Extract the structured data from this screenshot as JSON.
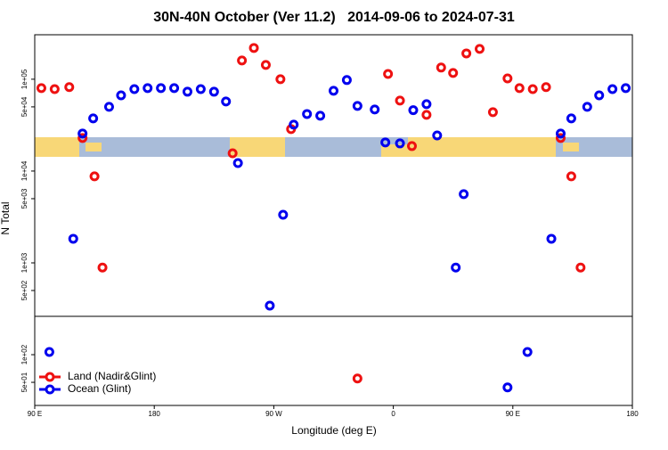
{
  "chart_data": {
    "type": "scatter",
    "title": "30N-40N October (Ver 11.2)   2014-09-06 to 2024-07-31",
    "xlabel": "Longitude (deg E)",
    "ylabel": "N Total",
    "xlim": [
      90,
      540
    ],
    "xticks": [
      {
        "value": 90,
        "label": "90 E"
      },
      180,
      {
        "value": 270,
        "label": "90 W"
      },
      {
        "value": 360,
        "label": "0"
      },
      {
        "value": 450,
        "label": "90 E"
      },
      {
        "value": 540,
        "label": "180"
      }
    ],
    "ylim": [
      28,
      305000
    ],
    "log_y": true,
    "yticks": [
      {
        "value": 50,
        "label": "5e+01"
      },
      {
        "value": 100,
        "label": "1e+02"
      },
      {
        "value": 500,
        "label": "5e+02"
      },
      {
        "value": 1000,
        "label": "1e+03"
      },
      {
        "value": 5000,
        "label": "5e+03"
      },
      {
        "value": 10000,
        "label": "1e+04"
      },
      {
        "value": 50000,
        "label": "5e+04"
      },
      {
        "value": 100000,
        "label": "1e+05"
      }
    ],
    "legend": "bottom-left",
    "series": [
      {
        "name": "Land (Nadir&Glint)",
        "color": "#ee1111",
        "x": [
          95,
          105,
          116,
          126,
          135,
          141,
          239,
          246,
          255,
          264,
          275,
          283,
          333,
          356,
          365,
          374,
          385,
          396,
          405,
          415,
          425,
          435,
          446,
          455,
          465,
          475,
          486,
          494,
          501
        ],
        "values": [
          80000,
          78000,
          82000,
          22900,
          8750,
          890,
          15600,
          160000,
          219000,
          143000,
          100000,
          28600,
          55,
          114000,
          58500,
          18700,
          40900,
          134000,
          117000,
          191000,
          214000,
          43800,
          102000,
          80000,
          78000,
          82000,
          22900,
          8750,
          890
        ]
      },
      {
        "name": "Ocean (Glint)",
        "color": "#0000ee",
        "x": [
          101,
          119,
          126,
          134,
          146,
          155,
          165,
          175,
          185,
          195,
          205,
          215,
          225,
          234,
          243,
          267,
          277,
          285,
          295,
          305,
          315,
          325,
          333,
          346,
          354,
          365,
          375,
          385,
          393,
          407,
          413,
          446,
          461,
          479,
          486,
          494,
          506,
          515,
          525,
          535
        ],
        "values": [
          107,
          1830,
          25600,
          37400,
          50000,
          66800,
          78000,
          80000,
          80000,
          80000,
          73100,
          78000,
          73100,
          57200,
          12200,
          342,
          3340,
          32000,
          41800,
          40000,
          74800,
          98000,
          51200,
          46800,
          20500,
          20000,
          46000,
          53500,
          24400,
          890,
          5600,
          44,
          107,
          1830,
          25600,
          37400,
          50000,
          66800,
          78000,
          80000
        ]
      }
    ]
  }
}
